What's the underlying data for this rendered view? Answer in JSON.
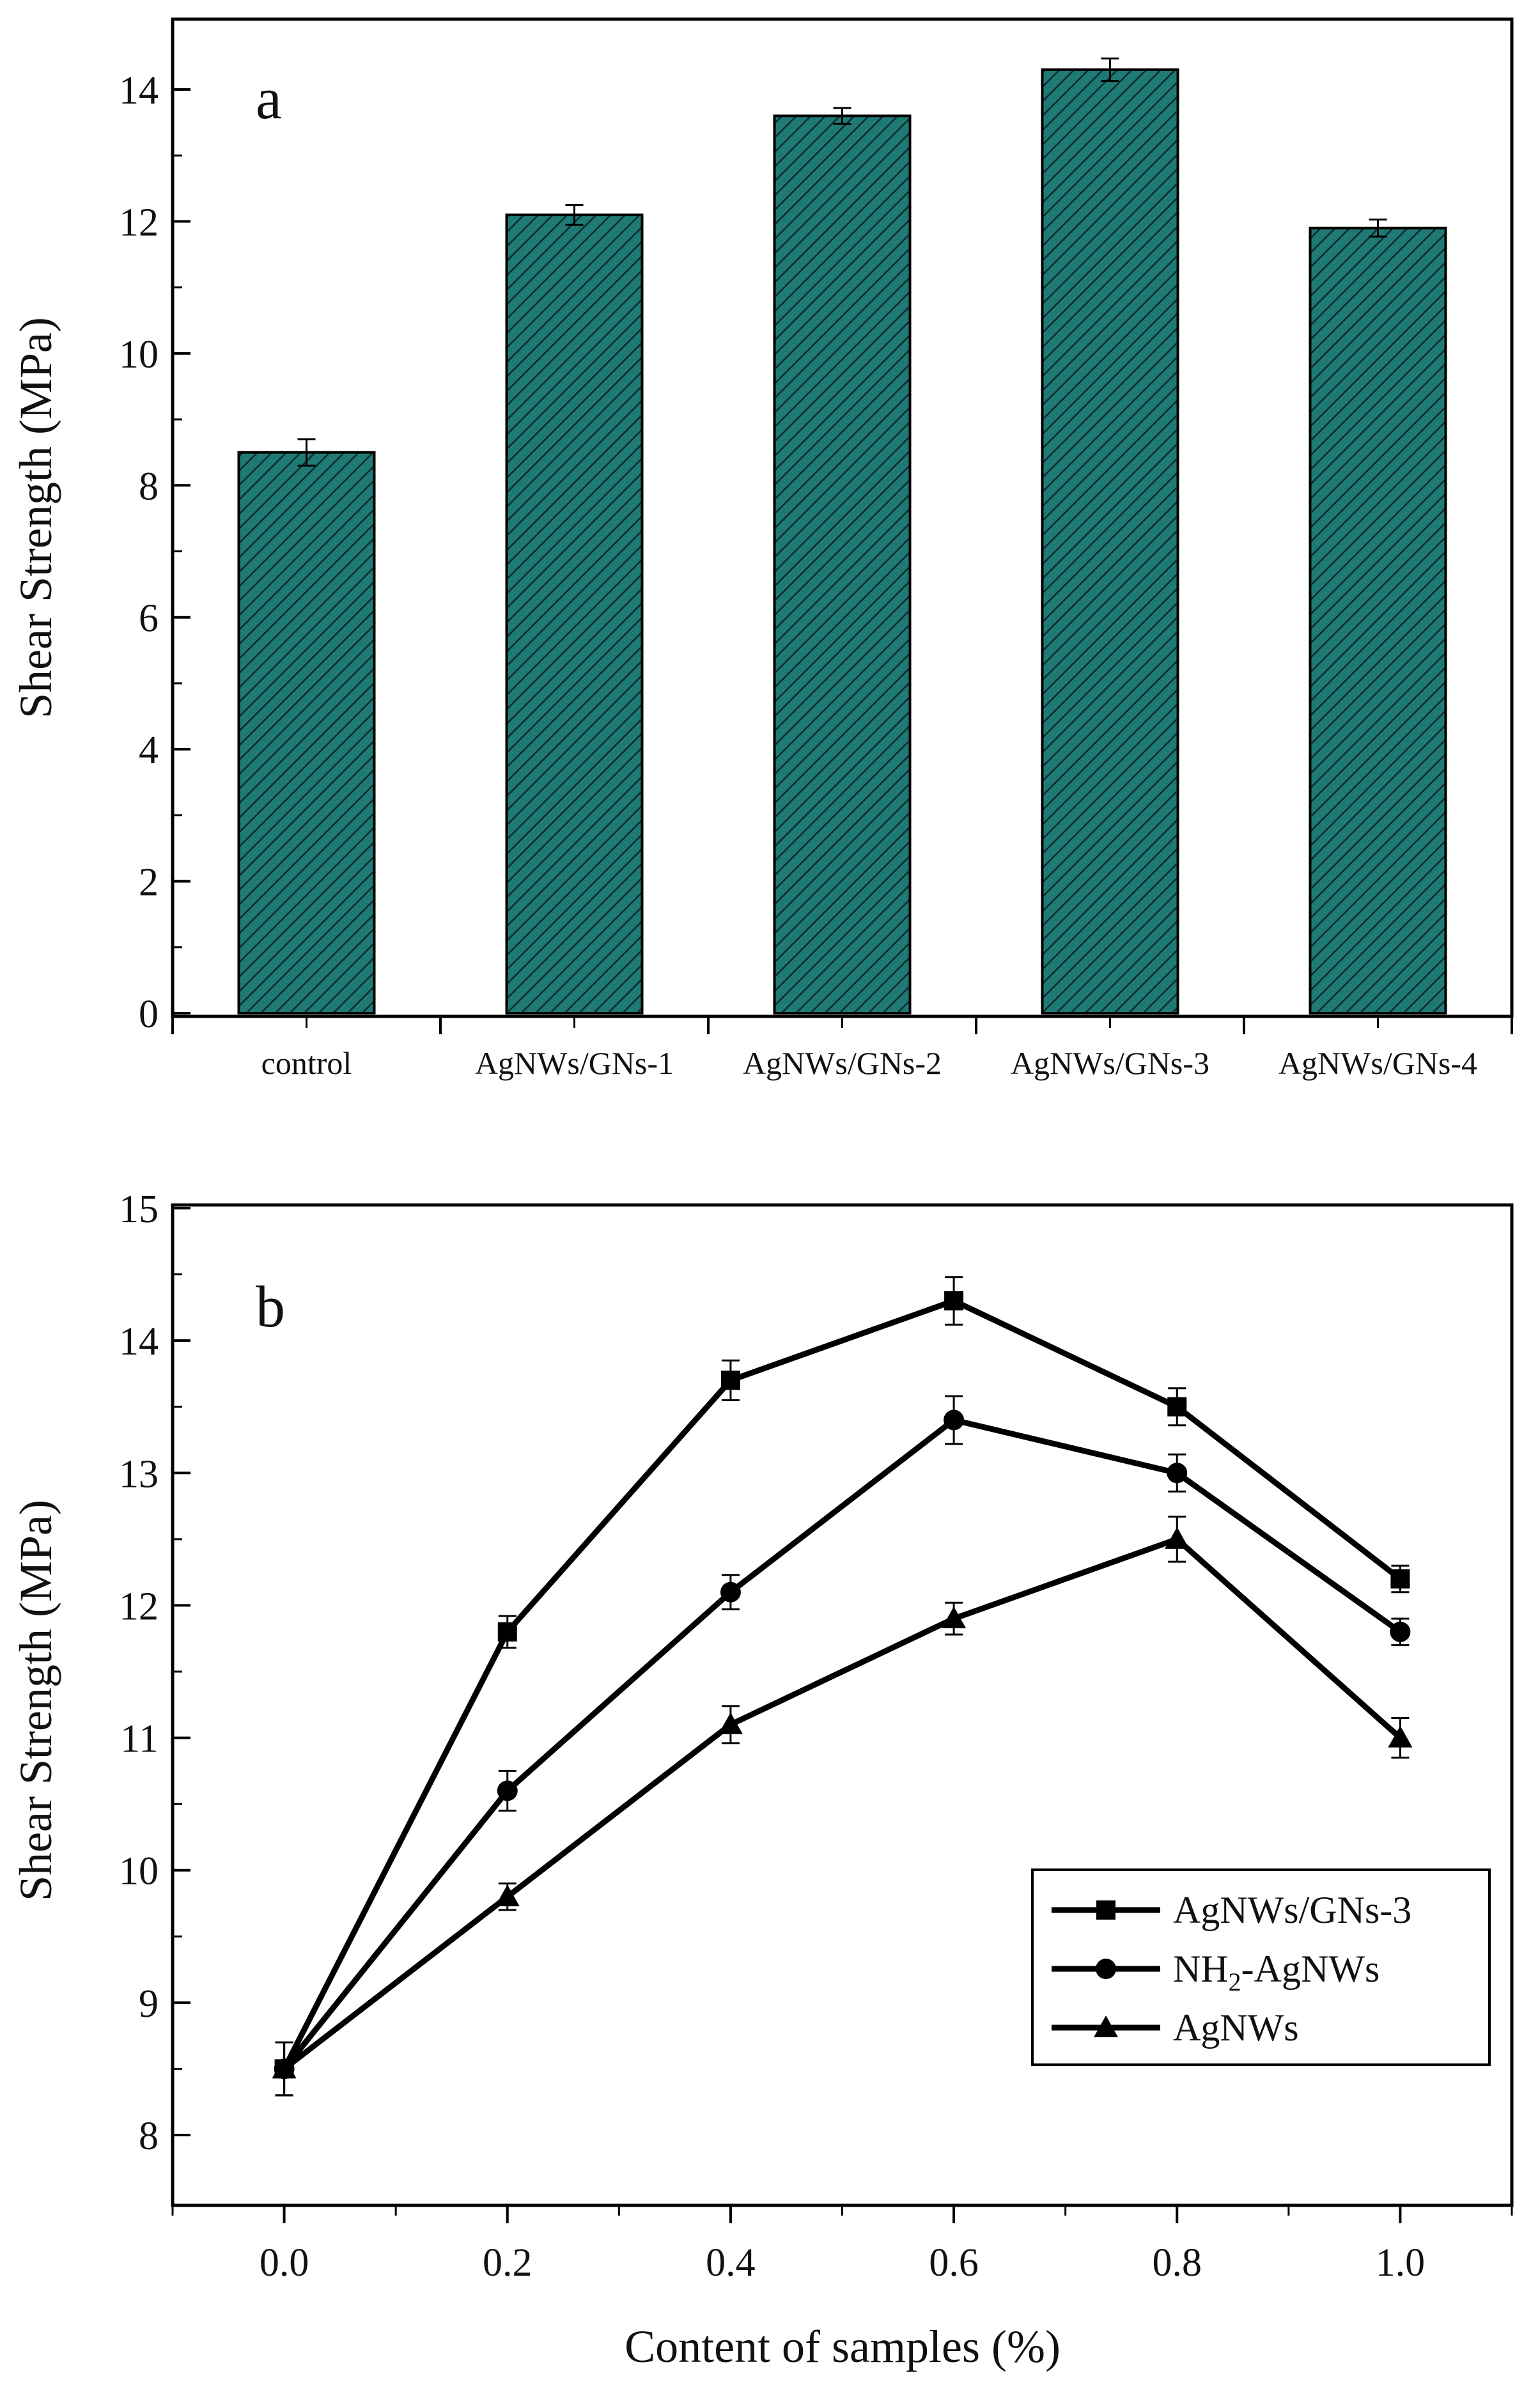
{
  "chart_data": [
    {
      "type": "bar",
      "panel": "a",
      "ylabel": "Shear Strength (MPa)",
      "xlabel": "",
      "ylim": [
        0,
        15
      ],
      "yticks": [
        0,
        2,
        4,
        6,
        8,
        10,
        12,
        14
      ],
      "categories": [
        "control",
        "AgNWs/GNs-1",
        "AgNWs/GNs-2",
        "AgNWs/GNs-3",
        "AgNWs/GNs-4"
      ],
      "values": [
        8.5,
        12.1,
        13.6,
        14.3,
        11.9
      ],
      "errors": [
        0.2,
        0.15,
        0.12,
        0.17,
        0.13
      ],
      "bar_color": "#1f7a75",
      "hatch_color": "#0b2b2a"
    },
    {
      "type": "line",
      "panel": "b",
      "xlabel": "Content of samples (%)",
      "ylabel": "Shear Strength (MPa)",
      "xlim": [
        -0.1,
        1.1
      ],
      "ylim": [
        7.6,
        15
      ],
      "xticks": [
        "0.0",
        "0.2",
        "0.4",
        "0.6",
        "0.8",
        "1.0"
      ],
      "yticks": [
        8,
        9,
        10,
        11,
        12,
        13,
        14,
        15
      ],
      "x": [
        0.0,
        0.2,
        0.4,
        0.6,
        0.8,
        1.0
      ],
      "series": [
        {
          "name": "AgNWs/GNs-3",
          "marker": "square",
          "values": [
            8.5,
            11.8,
            13.7,
            14.3,
            13.5,
            12.2
          ],
          "errors": [
            0.2,
            0.12,
            0.15,
            0.18,
            0.14,
            0.1
          ]
        },
        {
          "name": "NH2-AgNWs",
          "legend_main": "NH",
          "legend_sub": "2",
          "legend_rest": "-AgNWs",
          "marker": "circle",
          "values": [
            8.5,
            10.6,
            12.1,
            13.4,
            13.0,
            11.8
          ],
          "errors": [
            0.2,
            0.15,
            0.13,
            0.18,
            0.14,
            0.1
          ]
        },
        {
          "name": "AgNWs",
          "marker": "triangle",
          "values": [
            8.5,
            9.8,
            11.1,
            11.9,
            12.5,
            11.0
          ],
          "errors": [
            0.2,
            0.1,
            0.14,
            0.12,
            0.17,
            0.15
          ]
        }
      ],
      "legend_position": "lower-right"
    }
  ]
}
